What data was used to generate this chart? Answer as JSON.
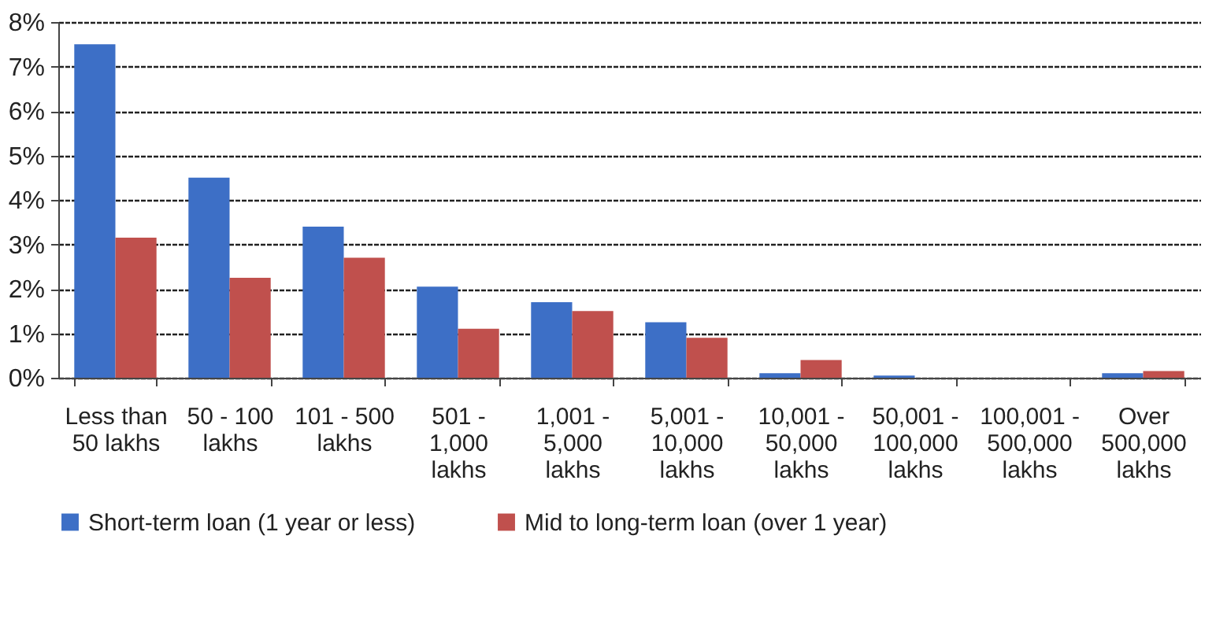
{
  "chart_data": {
    "type": "bar",
    "categories": [
      "Less than 50 lakhs",
      "50 - 100 lakhs",
      "101 - 500 lakhs",
      "501 - 1,000 lakhs",
      "1,001 - 5,000 lakhs",
      "5,001 - 10,000 lakhs",
      "10,001 - 50,000 lakhs",
      "50,001 - 100,000 lakhs",
      "100,001 - 500,000 lakhs",
      "Over 500,000 lakhs"
    ],
    "series": [
      {
        "name": "Short-term loan (1 year or less)",
        "color": "#3d6fc6",
        "values": [
          7.5,
          4.5,
          3.4,
          2.05,
          1.7,
          1.25,
          0.1,
          0.05,
          0,
          0.1
        ]
      },
      {
        "name": "Mid to long-term loan (over 1 year)",
        "color": "#c0504d",
        "values": [
          3.15,
          2.25,
          2.7,
          1.1,
          1.5,
          0.9,
          0.4,
          0,
          0,
          0.15
        ]
      }
    ],
    "ylim": [
      0,
      8
    ],
    "yticks": [
      {
        "value": 0,
        "label": "0%"
      },
      {
        "value": 1,
        "label": "1%"
      },
      {
        "value": 2,
        "label": "2%"
      },
      {
        "value": 3,
        "label": "3%"
      },
      {
        "value": 4,
        "label": "4%"
      },
      {
        "value": 5,
        "label": "5%"
      },
      {
        "value": 6,
        "label": "6%"
      },
      {
        "value": 7,
        "label": "7%"
      },
      {
        "value": 8,
        "label": "8%"
      }
    ],
    "grid": "y",
    "legend": "bottom"
  }
}
